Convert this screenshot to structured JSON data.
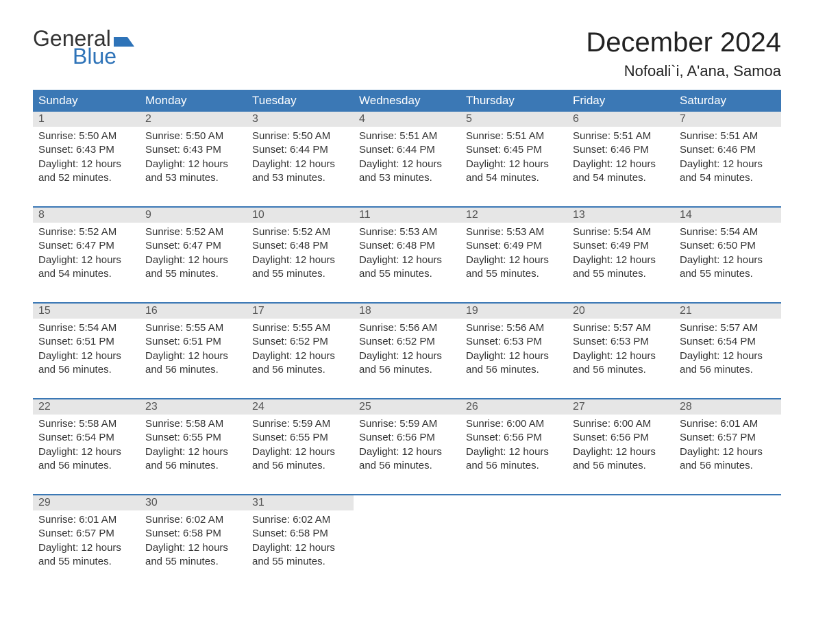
{
  "logo": {
    "text_top": "General",
    "text_bottom": "Blue",
    "flag_color": "#2e73b8",
    "text_color_top": "#333333",
    "text_color_bottom": "#2e73b8"
  },
  "title": {
    "month": "December 2024",
    "location": "Nofoali`i, A'ana, Samoa"
  },
  "colors": {
    "header_bg": "#3b78b5",
    "header_text": "#ffffff",
    "daynum_bg": "#e6e6e6",
    "daynum_text": "#555555",
    "body_text": "#333333",
    "divider": "#3b78b5",
    "page_bg": "#ffffff"
  },
  "typography": {
    "title_fontsize": 40,
    "location_fontsize": 22,
    "dayheader_fontsize": 17,
    "daynum_fontsize": 16,
    "celltext_fontsize": 15,
    "font_family": "Arial"
  },
  "layout": {
    "columns": 7,
    "rows": 5,
    "cell_width_pct": 14.2857
  },
  "day_headers": [
    "Sunday",
    "Monday",
    "Tuesday",
    "Wednesday",
    "Thursday",
    "Friday",
    "Saturday"
  ],
  "labels": {
    "sunrise": "Sunrise:",
    "sunset": "Sunset:",
    "daylight": "Daylight:"
  },
  "weeks": [
    [
      {
        "num": "1",
        "sunrise": "5:50 AM",
        "sunset": "6:43 PM",
        "daylight": "12 hours and 52 minutes."
      },
      {
        "num": "2",
        "sunrise": "5:50 AM",
        "sunset": "6:43 PM",
        "daylight": "12 hours and 53 minutes."
      },
      {
        "num": "3",
        "sunrise": "5:50 AM",
        "sunset": "6:44 PM",
        "daylight": "12 hours and 53 minutes."
      },
      {
        "num": "4",
        "sunrise": "5:51 AM",
        "sunset": "6:44 PM",
        "daylight": "12 hours and 53 minutes."
      },
      {
        "num": "5",
        "sunrise": "5:51 AM",
        "sunset": "6:45 PM",
        "daylight": "12 hours and 54 minutes."
      },
      {
        "num": "6",
        "sunrise": "5:51 AM",
        "sunset": "6:46 PM",
        "daylight": "12 hours and 54 minutes."
      },
      {
        "num": "7",
        "sunrise": "5:51 AM",
        "sunset": "6:46 PM",
        "daylight": "12 hours and 54 minutes."
      }
    ],
    [
      {
        "num": "8",
        "sunrise": "5:52 AM",
        "sunset": "6:47 PM",
        "daylight": "12 hours and 54 minutes."
      },
      {
        "num": "9",
        "sunrise": "5:52 AM",
        "sunset": "6:47 PM",
        "daylight": "12 hours and 55 minutes."
      },
      {
        "num": "10",
        "sunrise": "5:52 AM",
        "sunset": "6:48 PM",
        "daylight": "12 hours and 55 minutes."
      },
      {
        "num": "11",
        "sunrise": "5:53 AM",
        "sunset": "6:48 PM",
        "daylight": "12 hours and 55 minutes."
      },
      {
        "num": "12",
        "sunrise": "5:53 AM",
        "sunset": "6:49 PM",
        "daylight": "12 hours and 55 minutes."
      },
      {
        "num": "13",
        "sunrise": "5:54 AM",
        "sunset": "6:49 PM",
        "daylight": "12 hours and 55 minutes."
      },
      {
        "num": "14",
        "sunrise": "5:54 AM",
        "sunset": "6:50 PM",
        "daylight": "12 hours and 55 minutes."
      }
    ],
    [
      {
        "num": "15",
        "sunrise": "5:54 AM",
        "sunset": "6:51 PM",
        "daylight": "12 hours and 56 minutes."
      },
      {
        "num": "16",
        "sunrise": "5:55 AM",
        "sunset": "6:51 PM",
        "daylight": "12 hours and 56 minutes."
      },
      {
        "num": "17",
        "sunrise": "5:55 AM",
        "sunset": "6:52 PM",
        "daylight": "12 hours and 56 minutes."
      },
      {
        "num": "18",
        "sunrise": "5:56 AM",
        "sunset": "6:52 PM",
        "daylight": "12 hours and 56 minutes."
      },
      {
        "num": "19",
        "sunrise": "5:56 AM",
        "sunset": "6:53 PM",
        "daylight": "12 hours and 56 minutes."
      },
      {
        "num": "20",
        "sunrise": "5:57 AM",
        "sunset": "6:53 PM",
        "daylight": "12 hours and 56 minutes."
      },
      {
        "num": "21",
        "sunrise": "5:57 AM",
        "sunset": "6:54 PM",
        "daylight": "12 hours and 56 minutes."
      }
    ],
    [
      {
        "num": "22",
        "sunrise": "5:58 AM",
        "sunset": "6:54 PM",
        "daylight": "12 hours and 56 minutes."
      },
      {
        "num": "23",
        "sunrise": "5:58 AM",
        "sunset": "6:55 PM",
        "daylight": "12 hours and 56 minutes."
      },
      {
        "num": "24",
        "sunrise": "5:59 AM",
        "sunset": "6:55 PM",
        "daylight": "12 hours and 56 minutes."
      },
      {
        "num": "25",
        "sunrise": "5:59 AM",
        "sunset": "6:56 PM",
        "daylight": "12 hours and 56 minutes."
      },
      {
        "num": "26",
        "sunrise": "6:00 AM",
        "sunset": "6:56 PM",
        "daylight": "12 hours and 56 minutes."
      },
      {
        "num": "27",
        "sunrise": "6:00 AM",
        "sunset": "6:56 PM",
        "daylight": "12 hours and 56 minutes."
      },
      {
        "num": "28",
        "sunrise": "6:01 AM",
        "sunset": "6:57 PM",
        "daylight": "12 hours and 56 minutes."
      }
    ],
    [
      {
        "num": "29",
        "sunrise": "6:01 AM",
        "sunset": "6:57 PM",
        "daylight": "12 hours and 55 minutes."
      },
      {
        "num": "30",
        "sunrise": "6:02 AM",
        "sunset": "6:58 PM",
        "daylight": "12 hours and 55 minutes."
      },
      {
        "num": "31",
        "sunrise": "6:02 AM",
        "sunset": "6:58 PM",
        "daylight": "12 hours and 55 minutes."
      },
      null,
      null,
      null,
      null
    ]
  ]
}
